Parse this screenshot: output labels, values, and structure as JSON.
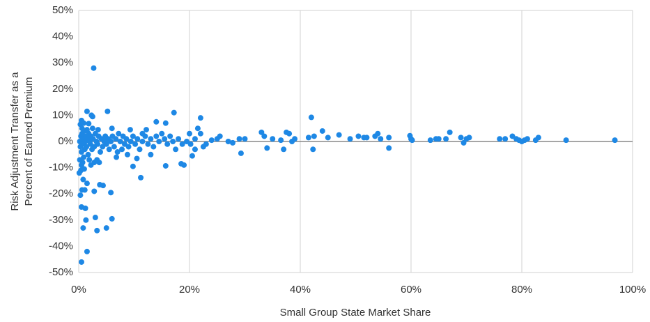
{
  "chart_data": {
    "type": "scatter",
    "x_label": "Small Group State Market Share",
    "y_label": [
      "Risk Adjustment Transfer as a",
      "Percent of Earned Premium"
    ],
    "color": "#1e88e5",
    "grid": true,
    "xlim": [
      0,
      100
    ],
    "ylim": [
      -50,
      50
    ],
    "xticks": [
      {
        "value": 0,
        "label": "0%"
      },
      {
        "value": 20,
        "label": "20%"
      },
      {
        "value": 40,
        "label": "40%"
      },
      {
        "value": 60,
        "label": "60%"
      },
      {
        "value": 80,
        "label": "80%"
      },
      {
        "value": 100,
        "label": "100%"
      }
    ],
    "yticks": [
      {
        "value": -50,
        "label": "-50%"
      },
      {
        "value": -40,
        "label": "-40%"
      },
      {
        "value": -30,
        "label": "-30%"
      },
      {
        "value": -20,
        "label": "-20%"
      },
      {
        "value": -10,
        "label": "-10%"
      },
      {
        "value": 0,
        "label": "0%"
      },
      {
        "value": 10,
        "label": "10%"
      },
      {
        "value": 20,
        "label": "20%"
      },
      {
        "value": 30,
        "label": "30%"
      },
      {
        "value": 40,
        "label": "40%"
      },
      {
        "value": 50,
        "label": "50%"
      }
    ],
    "x": [
      2.7,
      1.5,
      2.3,
      2.5,
      5.2,
      17.2,
      22,
      42,
      1.5,
      0.5,
      0.8,
      3.3,
      5,
      3,
      6,
      1.3,
      0.5,
      1.2,
      0.3,
      0.6,
      1.1,
      2.8,
      5.8,
      3.8,
      4.4,
      1.5,
      0.8,
      11.2,
      1,
      0.5,
      9.8,
      15.7,
      18.5,
      19,
      2.8,
      3.7,
      13,
      10.5,
      20.5,
      21,
      0.3,
      0.6,
      1.8,
      2.5,
      6,
      9.3,
      11.5,
      12.2,
      14,
      15.7,
      20,
      21.5,
      22,
      24,
      25,
      25.5,
      27,
      27.8,
      29,
      29.3,
      30,
      33,
      33.5,
      34,
      35,
      36.5,
      37,
      37.5,
      38,
      38.5,
      39,
      41.5,
      42.3,
      42.5,
      44,
      45,
      47,
      49,
      50.5,
      51.5,
      52,
      53.5,
      54,
      54.5,
      56,
      56,
      59.8,
      60,
      60.2,
      63.5,
      64.5,
      65,
      66.3,
      67,
      69,
      69.5,
      70,
      70.5,
      76,
      77,
      78.3,
      79,
      79.5,
      80,
      80.5,
      81,
      82.5,
      83,
      88,
      96.8,
      0.2,
      0.3,
      0.4,
      0.5,
      0.6,
      0.7,
      0.8,
      0.9,
      1,
      1.1,
      1.2,
      1.3,
      1.4,
      1.6,
      1.7,
      1.8,
      2,
      2.1,
      2.2,
      2.4,
      2.6,
      2.8,
      3,
      3.2,
      3.4,
      3.6,
      3.9,
      4.1,
      4.3,
      4.6,
      4.8,
      5,
      5.3,
      5.5,
      5.8,
      6.1,
      6.4,
      6.7,
      7,
      7.2,
      7.5,
      7.8,
      8,
      8.3,
      8.6,
      9,
      9.4,
      9.8,
      10.2,
      10.6,
      11,
      11.5,
      12,
      12.5,
      13,
      13.5,
      14,
      14.5,
      15,
      15.5,
      16,
      16.5,
      17,
      17.5,
      18,
      18.7,
      19.5,
      20.2,
      21,
      22.5,
      23,
      0.1,
      0.2,
      0.4,
      0.5,
      0.7,
      1.9,
      3.3,
      2.2,
      0.9,
      6.8,
      8.8,
      3.5,
      1.5
    ],
    "values": [
      28,
      11.5,
      10,
      9.5,
      11.5,
      11,
      9,
      9.2,
      -42,
      -46,
      -33,
      -34,
      -33,
      -29,
      -29.5,
      -30,
      -25,
      -25.5,
      -20.5,
      -18.5,
      -18.5,
      -19,
      -19.5,
      -16.5,
      -16.8,
      -16,
      -14.5,
      -13.8,
      -10.5,
      -9,
      -9.5,
      -9.3,
      -8.5,
      -9,
      -8,
      -8,
      -5,
      -6.5,
      -5.5,
      -3,
      6.5,
      5,
      6.8,
      5,
      5,
      4.5,
      3,
      4.5,
      7.5,
      7,
      3,
      5,
      3,
      0.5,
      1,
      2,
      0,
      -0.5,
      1,
      -4.5,
      1,
      3.5,
      2,
      -2.5,
      1,
      0.5,
      -3,
      3.5,
      3,
      0,
      1,
      1.5,
      -3,
      2,
      4,
      1.5,
      2.5,
      1,
      2,
      1.5,
      1.5,
      2,
      3,
      1,
      -2.5,
      1.5,
      2.2,
      1,
      0.5,
      0.5,
      1,
      1,
      1,
      3.5,
      1.5,
      -0.5,
      1,
      1.5,
      1,
      1,
      2,
      1,
      0.5,
      0,
      0.5,
      1,
      0.5,
      1.5,
      0.5,
      0.5,
      0,
      -2,
      2,
      -4,
      3,
      -1,
      1,
      -6,
      4,
      -3,
      0,
      2,
      -2,
      1,
      -5,
      3,
      0,
      -1,
      2,
      -3,
      1,
      -2,
      3,
      0,
      -1,
      2,
      -4,
      1,
      -2,
      0,
      2,
      -1,
      1,
      -3,
      0,
      2,
      -2,
      1,
      -4,
      3,
      0,
      -3,
      2,
      -1,
      1,
      -2,
      0,
      2,
      -1,
      1,
      -3,
      0,
      2,
      -1,
      1,
      -2,
      2,
      0,
      3,
      1,
      -1,
      2,
      0,
      -3,
      1,
      -1,
      0,
      -1,
      1,
      -2,
      -1,
      -12,
      -7,
      -11,
      8,
      -8,
      -7,
      -7,
      -9,
      7,
      -6,
      -5,
      4.5,
      4.5
    ]
  }
}
